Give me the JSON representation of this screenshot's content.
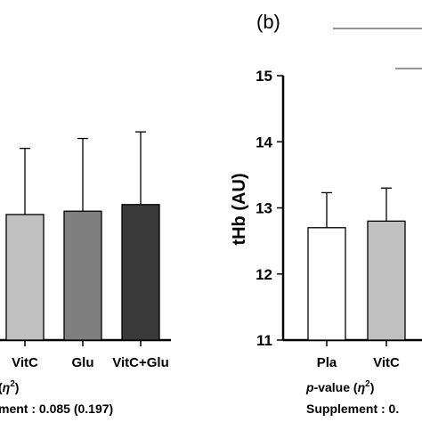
{
  "chart_data": [
    {
      "type": "bar",
      "panel": "",
      "categories": [
        "VitC",
        "Glu",
        "VitC+Glu"
      ],
      "values": [
        12.9,
        12.95,
        13.05
      ],
      "error_upper": [
        1.0,
        1.1,
        1.1
      ],
      "bar_colors": [
        "#c0c0c0",
        "#7f7f7f",
        "#3a3a3a"
      ],
      "ylabel": "",
      "annotation": {
        "line1_prefix": "(",
        "line1_eta": "η",
        "line1_sup": "2",
        "line1_suffix": ")",
        "line2": "ment : 0.085 (0.197)"
      },
      "grid": false
    },
    {
      "type": "bar",
      "panel": "(b)",
      "categories": [
        "Pla",
        "VitC"
      ],
      "values": [
        12.7,
        12.8
      ],
      "error_upper": [
        0.53,
        0.5
      ],
      "bar_colors": [
        "#ffffff",
        "#c0c0c0"
      ],
      "ylabel": "tHb (AU)",
      "ylim": [
        11,
        15
      ],
      "yticks": [
        "11",
        "12",
        "13",
        "14",
        "15"
      ],
      "annotation": {
        "line1_p": "p",
        "line1_rest": "-value (",
        "line1_eta": "η",
        "line1_sup": "2",
        "line1_suffix": ")",
        "line2": "Supplement : 0."
      },
      "grid": false
    }
  ]
}
